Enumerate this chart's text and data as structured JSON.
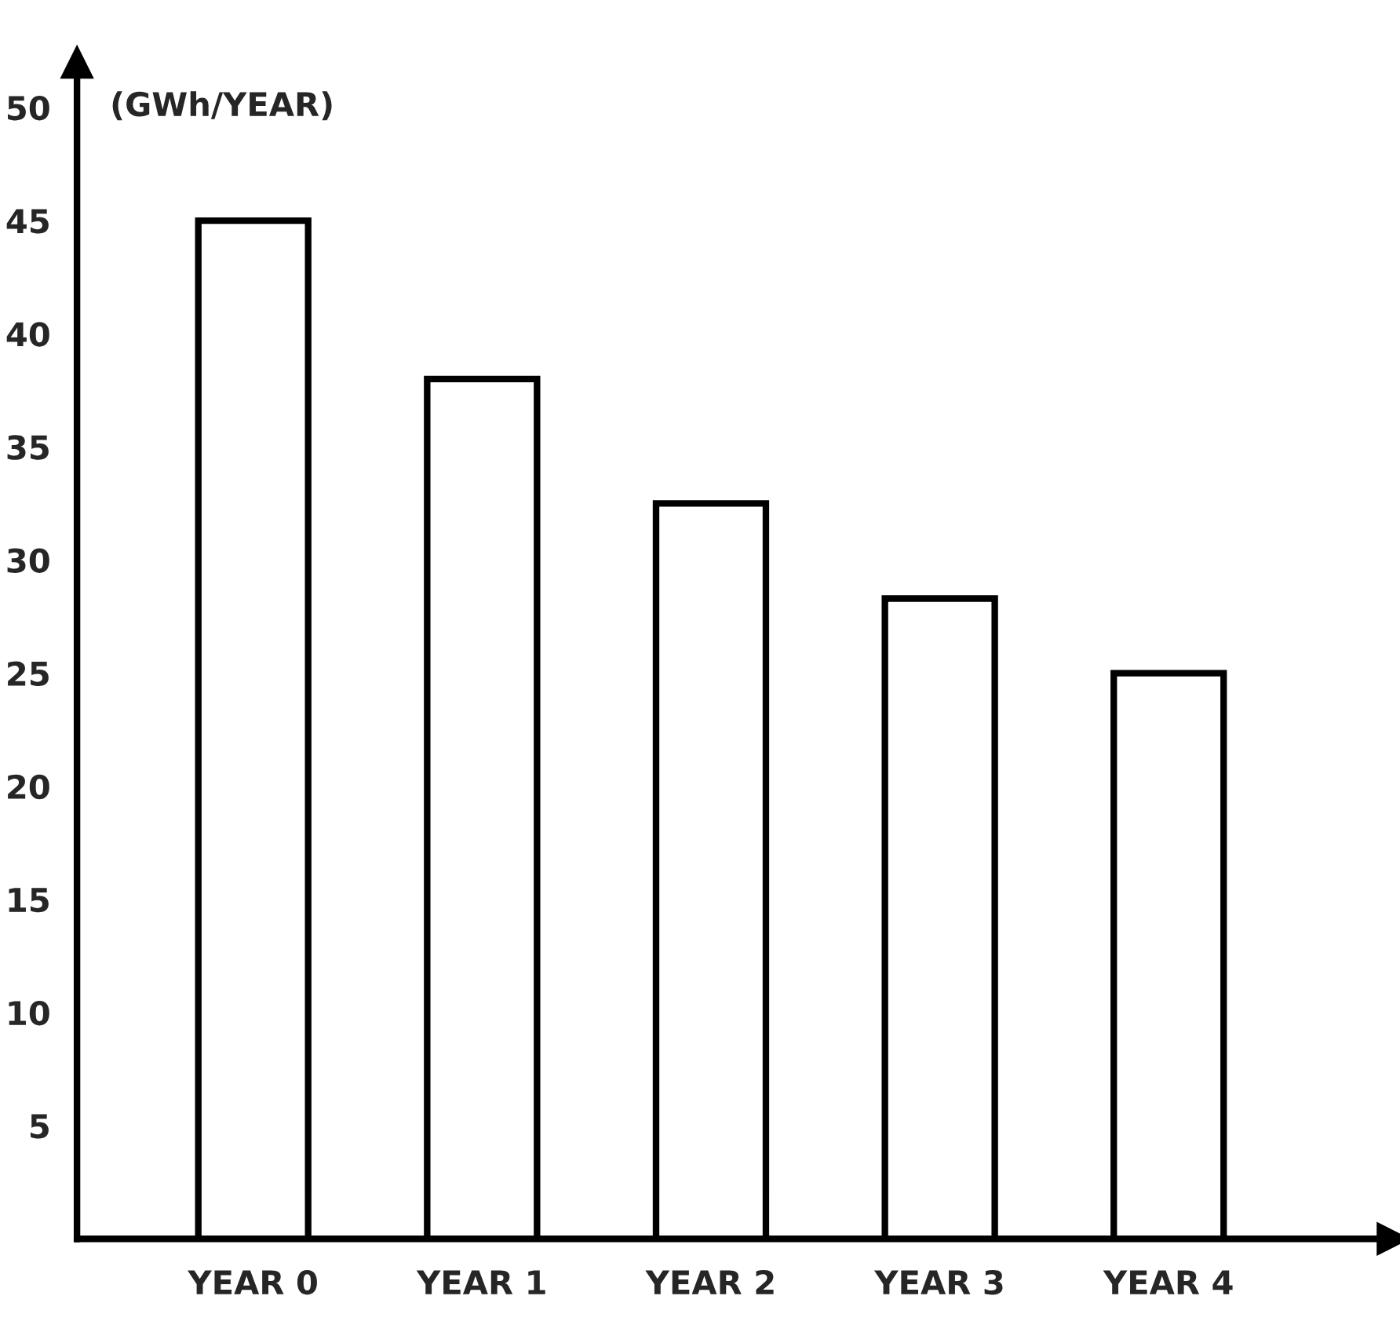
{
  "chart_data": {
    "type": "bar",
    "ylabel": "(GWh/YEAR)",
    "categories": [
      "YEAR 0",
      "YEAR 1",
      "YEAR 2",
      "YEAR 3",
      "YEAR 4"
    ],
    "values": [
      45,
      38,
      32.5,
      28.3,
      25
    ],
    "color": "#ffffff",
    "ylim": [
      0,
      52
    ],
    "yticks": [
      5,
      10,
      15,
      20,
      25,
      30,
      35,
      40,
      45,
      50
    ],
    "grid": false
  }
}
